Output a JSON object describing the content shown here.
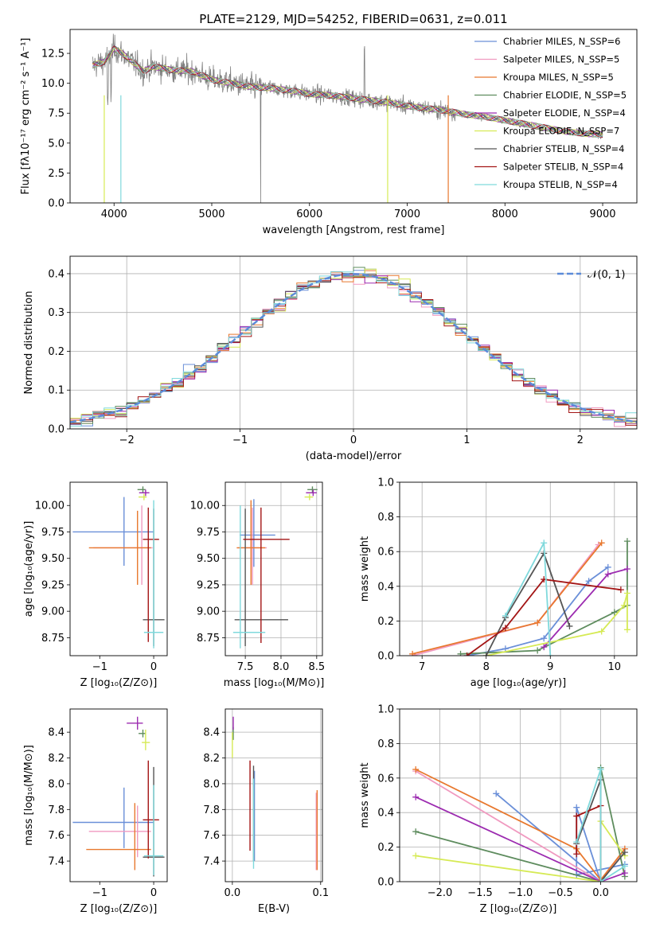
{
  "colors": {
    "spectrum": "#808080",
    "normal": "#5b8bd9",
    "models": [
      "#6a8fd8",
      "#f09ac0",
      "#e8782e",
      "#5e8c5e",
      "#9c2bb0",
      "#d6ea55",
      "#555555",
      "#a31515",
      "#7fd9dc"
    ]
  },
  "chart_data": [
    {
      "id": "spectrum",
      "type": "line",
      "title": "PLATE=2129, MJD=54252, FIBERID=0631, z=0.011",
      "xlabel": "wavelength [Angstrom, rest frame]",
      "ylabel": "Flux [fλ10⁻¹⁷ erg cm⁻² s⁻¹ A⁻¹]",
      "xlim": [
        3550,
        9350
      ],
      "ylim": [
        0,
        14.5
      ],
      "xticks": [
        4000,
        5000,
        6000,
        7000,
        8000,
        9000
      ],
      "yticks": [
        0.0,
        2.5,
        5.0,
        7.5,
        10.0,
        12.5
      ],
      "legend_position": "top-right",
      "legend": [
        "Chabrier MILES, N_SSP=6",
        "Salpeter MILES, N_SSP=5",
        "Kroupa MILES, N_SSP=5",
        "Chabrier ELODIE, N_SSP=5",
        "Salpeter ELODIE, N_SSP=4",
        "Kroupa ELODIE, N_SSP=7",
        "Chabrier STELIB, N_SSP=4",
        "Salpeter STELIB, N_SSP=4",
        "Kroupa STELIB, N_SSP=4"
      ],
      "continuum": [
        [
          3780,
          11.5
        ],
        [
          3900,
          11.8
        ],
        [
          4000,
          12.9
        ],
        [
          4100,
          12.4
        ],
        [
          4200,
          11.7
        ],
        [
          4300,
          11.0
        ],
        [
          4400,
          11.4
        ],
        [
          4600,
          11.1
        ],
        [
          4800,
          11.0
        ],
        [
          5000,
          10.3
        ],
        [
          5200,
          10.0
        ],
        [
          5400,
          9.7
        ],
        [
          5600,
          9.6
        ],
        [
          5800,
          9.4
        ],
        [
          6000,
          9.1
        ],
        [
          6200,
          9.0
        ],
        [
          6400,
          8.8
        ],
        [
          6600,
          8.6
        ],
        [
          6800,
          8.4
        ],
        [
          7000,
          8.1
        ],
        [
          7200,
          7.9
        ],
        [
          7400,
          7.7
        ],
        [
          7600,
          7.4
        ],
        [
          7800,
          7.2
        ],
        [
          8000,
          6.9
        ],
        [
          8200,
          6.6
        ],
        [
          8400,
          6.3
        ],
        [
          8600,
          6.0
        ],
        [
          8800,
          5.8
        ],
        [
          9000,
          5.7
        ]
      ]
    },
    {
      "id": "residuals",
      "type": "bar",
      "xlabel": "(data-model)/error",
      "ylabel": "Normed distribution",
      "xlim": [
        -2.5,
        2.5
      ],
      "ylim": [
        0,
        0.445
      ],
      "xticks": [
        -2,
        -1,
        0,
        1,
        2
      ],
      "yticks": [
        0.0,
        0.1,
        0.2,
        0.3,
        0.4
      ],
      "legend_position": "top-right",
      "legend": [
        "𝒩(0, 1)"
      ],
      "bin_width": 0.1,
      "bins_from": -2.5
    },
    {
      "id": "age-vs-Z",
      "type": "scatter",
      "xlabel": "Z [log₁₀(Z/Z⊙)]",
      "ylabel": "age  [log₁₀(age/yr)]",
      "xlim": [
        -1.55,
        0.25
      ],
      "ylim": [
        8.58,
        10.22
      ],
      "xticks": [
        -1,
        0
      ],
      "yticks": [
        8.75,
        9.0,
        9.25,
        9.5,
        9.75,
        10.0
      ],
      "points": [
        {
          "x": -0.55,
          "y": 9.75,
          "xe": [
            0.95,
            0.55
          ],
          "ye": [
            0.32,
            0.33
          ]
        },
        {
          "x": -0.22,
          "y": 9.6,
          "xe": [
            0.9,
            0.2
          ],
          "ye": [
            0.35,
            0.4
          ]
        },
        {
          "x": -0.3,
          "y": 9.6,
          "xe": [
            0.9,
            0.25
          ],
          "ye": [
            0.35,
            0.35
          ]
        },
        {
          "x": -0.2,
          "y": 10.15,
          "xe": [
            0.1,
            0.05
          ],
          "ye": [
            0.03,
            0.03
          ]
        },
        {
          "x": -0.15,
          "y": 10.12,
          "xe": [
            0.12,
            0.07
          ],
          "ye": [
            0.03,
            0.03
          ]
        },
        {
          "x": -0.18,
          "y": 10.08,
          "xe": [
            0.1,
            0.05
          ],
          "ye": [
            0.03,
            0.03
          ]
        },
        {
          "x": 0.0,
          "y": 8.92,
          "xe": [
            0.2,
            0.2
          ],
          "ye": [
            0.25,
            1.05
          ]
        },
        {
          "x": -0.1,
          "y": 9.68,
          "xe": [
            0.1,
            0.2
          ],
          "ye": [
            0.97,
            0.3
          ]
        },
        {
          "x": 0.0,
          "y": 8.8,
          "xe": [
            0.18,
            0.18
          ],
          "ye": [
            0.15,
            1.25
          ]
        }
      ]
    },
    {
      "id": "age-vs-mass",
      "type": "scatter",
      "xlabel": "mass [log₁₀(M/M⊙)]",
      "ylabel": "",
      "xlim": [
        7.22,
        8.58
      ],
      "ylim": [
        8.58,
        10.22
      ],
      "xticks": [
        7.5,
        8.0,
        8.5
      ],
      "yticks": [
        8.75,
        9.0,
        9.25,
        9.5,
        9.75,
        10.0
      ],
      "points": [
        {
          "x": 7.62,
          "y": 9.72,
          "xe": [
            0.2,
            0.3
          ],
          "ye": [
            0.3,
            0.34
          ]
        },
        {
          "x": 7.6,
          "y": 9.6,
          "xe": [
            0.2,
            0.2
          ],
          "ye": [
            0.35,
            0.38
          ]
        },
        {
          "x": 7.58,
          "y": 9.6,
          "xe": [
            0.2,
            0.2
          ],
          "ye": [
            0.35,
            0.45
          ]
        },
        {
          "x": 8.44,
          "y": 10.15,
          "xe": [
            0.07,
            0.07
          ],
          "ye": [
            0.03,
            0.03
          ]
        },
        {
          "x": 8.45,
          "y": 10.12,
          "xe": [
            0.1,
            0.05
          ],
          "ye": [
            0.03,
            0.03
          ]
        },
        {
          "x": 8.4,
          "y": 10.08,
          "xe": [
            0.07,
            0.05
          ],
          "ye": [
            0.03,
            0.03
          ]
        },
        {
          "x": 7.5,
          "y": 8.92,
          "xe": [
            0.15,
            0.6
          ],
          "ye": [
            0.25,
            1.05
          ]
        },
        {
          "x": 7.72,
          "y": 9.68,
          "xe": [
            0.25,
            0.4
          ],
          "ye": [
            0.98,
            0.3
          ]
        },
        {
          "x": 7.43,
          "y": 8.8,
          "xe": [
            0.1,
            0.35
          ],
          "ye": [
            0.15,
            1.2
          ]
        }
      ]
    },
    {
      "id": "weight-vs-age",
      "type": "line",
      "xlabel": "age  [log₁₀(age/yr)]",
      "ylabel": "mass weight",
      "xlim": [
        6.65,
        10.35
      ],
      "ylim": [
        0,
        1
      ],
      "xticks": [
        7,
        8,
        9,
        10
      ],
      "yticks": [
        0.0,
        0.2,
        0.4,
        0.6,
        0.8,
        1.0
      ],
      "series": [
        {
          "points": [
            [
              7.7,
              0.0
            ],
            [
              8.3,
              0.04
            ],
            [
              8.9,
              0.1
            ],
            [
              9.6,
              0.43
            ],
            [
              9.9,
              0.51
            ]
          ]
        },
        {
          "points": [
            [
              6.85,
              0.0
            ],
            [
              8.8,
              0.19
            ],
            [
              9.75,
              0.64
            ]
          ]
        },
        {
          "points": [
            [
              6.85,
              0.01
            ],
            [
              8.8,
              0.19
            ],
            [
              9.8,
              0.65
            ]
          ]
        },
        {
          "points": [
            [
              7.6,
              0.01
            ],
            [
              8.8,
              0.03
            ],
            [
              10.0,
              0.25
            ],
            [
              10.2,
              0.29
            ],
            [
              10.2,
              0.66
            ]
          ]
        },
        {
          "points": [
            [
              8.9,
              0.05
            ],
            [
              9.9,
              0.47
            ],
            [
              10.2,
              0.5
            ]
          ]
        },
        {
          "points": [
            [
              8.0,
              0.0
            ],
            [
              9.8,
              0.14
            ],
            [
              10.15,
              0.29
            ],
            [
              10.2,
              0.36
            ],
            [
              10.2,
              0.15
            ]
          ]
        },
        {
          "points": [
            [
              8.0,
              0.0
            ],
            [
              8.3,
              0.22
            ],
            [
              8.9,
              0.59
            ],
            [
              9.3,
              0.17
            ]
          ]
        },
        {
          "points": [
            [
              7.7,
              0.0
            ],
            [
              8.3,
              0.16
            ],
            [
              8.9,
              0.44
            ],
            [
              10.1,
              0.38
            ]
          ]
        },
        {
          "points": [
            [
              8.3,
              0.23
            ],
            [
              8.9,
              0.65
            ],
            [
              9.0,
              0.0
            ]
          ]
        }
      ]
    },
    {
      "id": "mass-vs-Z",
      "type": "scatter",
      "xlabel": "Z [log₁₀(Z/Z⊙)]",
      "ylabel": "mass [log₁₀(M/M⊙)]",
      "xlim": [
        -1.55,
        0.25
      ],
      "ylim": [
        7.24,
        8.58
      ],
      "xticks": [
        -1,
        0
      ],
      "yticks": [
        7.4,
        7.6,
        7.8,
        8.0,
        8.2,
        8.4
      ],
      "points": [
        {
          "x": -0.55,
          "y": 7.7,
          "xe": [
            0.95,
            0.55
          ],
          "ye": [
            0.2,
            0.27
          ]
        },
        {
          "x": -0.3,
          "y": 7.63,
          "xe": [
            0.9,
            0.25
          ],
          "ye": [
            0.2,
            0.2
          ]
        },
        {
          "x": -0.35,
          "y": 7.49,
          "xe": [
            0.9,
            0.3
          ],
          "ye": [
            0.16,
            0.36
          ]
        },
        {
          "x": -0.2,
          "y": 8.39,
          "xe": [
            0.08,
            0.05
          ],
          "ye": [
            0.03,
            0.03
          ]
        },
        {
          "x": -0.3,
          "y": 8.47,
          "xe": [
            0.2,
            0.1
          ],
          "ye": [
            0.05,
            0.05
          ]
        },
        {
          "x": -0.15,
          "y": 8.32,
          "xe": [
            0.07,
            0.08
          ],
          "ye": [
            0.06,
            0.1
          ]
        },
        {
          "x": 0.0,
          "y": 7.43,
          "xe": [
            0.2,
            0.2
          ],
          "ye": [
            0.15,
            0.7
          ]
        },
        {
          "x": -0.1,
          "y": 7.72,
          "xe": [
            0.1,
            0.2
          ],
          "ye": [
            0.3,
            0.46
          ]
        },
        {
          "x": 0.0,
          "y": 7.44,
          "xe": [
            0.18,
            0.18
          ],
          "ye": [
            0.15,
            0.55
          ]
        }
      ]
    },
    {
      "id": "mass-vs-ebv",
      "type": "scatter",
      "xlabel": "E(B-V)",
      "ylabel": "",
      "xlim": [
        -0.008,
        0.102
      ],
      "ylim": [
        7.24,
        8.58
      ],
      "xticks": [
        0.0,
        0.1
      ],
      "yticks": [
        7.4,
        7.6,
        7.8,
        8.0,
        8.2,
        8.4
      ],
      "points": [
        {
          "x": 0.025,
          "y": 7.7,
          "ye": [
            0.3,
            0.4
          ]
        },
        {
          "x": 0.095,
          "y": 7.63,
          "ye": [
            0.3,
            0.3
          ]
        },
        {
          "x": 0.096,
          "y": 7.55,
          "ye": [
            0.22,
            0.4
          ]
        },
        {
          "x": 0.001,
          "y": 8.39,
          "ye": [
            0.05,
            0.05
          ]
        },
        {
          "x": 0.001,
          "y": 8.47,
          "ye": [
            0.05,
            0.05
          ]
        },
        {
          "x": 0.0,
          "y": 8.3,
          "ye": [
            0.1,
            0.1
          ]
        },
        {
          "x": 0.024,
          "y": 7.7,
          "ye": [
            0.3,
            0.44
          ]
        },
        {
          "x": 0.02,
          "y": 7.83,
          "ye": [
            0.35,
            0.35
          ]
        },
        {
          "x": 0.024,
          "y": 7.44,
          "ye": [
            0.1,
            0.6
          ]
        }
      ]
    },
    {
      "id": "weight-vs-Z",
      "type": "line",
      "xlabel": "Z [log₁₀(Z/Z⊙)]",
      "ylabel": "mass weight",
      "xlim": [
        -2.5,
        0.45
      ],
      "ylim": [
        0,
        1
      ],
      "xticks": [
        -2.0,
        -1.5,
        -1.0,
        -0.5,
        0.0
      ],
      "yticks": [
        0.0,
        0.2,
        0.4,
        0.6,
        0.8,
        1.0
      ],
      "series": [
        {
          "points": [
            [
              -1.3,
              0.51
            ],
            [
              0.0,
              0.0
            ],
            [
              -0.3,
              0.43
            ],
            [
              -0.3,
              0.04
            ],
            [
              0.3,
              0.1
            ]
          ]
        },
        {
          "points": [
            [
              -2.3,
              0.64
            ],
            [
              0.0,
              0.0
            ],
            [
              0.3,
              0.19
            ]
          ]
        },
        {
          "points": [
            [
              -2.3,
              0.65
            ],
            [
              -0.3,
              0.19
            ],
            [
              0.0,
              0.01
            ],
            [
              0.3,
              0.19
            ]
          ]
        },
        {
          "points": [
            [
              -2.3,
              0.29
            ],
            [
              0.0,
              0.0
            ],
            [
              0.0,
              0.66
            ],
            [
              0.3,
              0.03
            ]
          ]
        },
        {
          "points": [
            [
              -2.3,
              0.49
            ],
            [
              0.0,
              0.0
            ],
            [
              0.3,
              0.05
            ]
          ]
        },
        {
          "points": [
            [
              -2.3,
              0.15
            ],
            [
              0.0,
              0.0
            ],
            [
              0.0,
              0.35
            ],
            [
              0.3,
              0.15
            ]
          ]
        },
        {
          "points": [
            [
              -0.3,
              0.22
            ],
            [
              0.0,
              0.59
            ],
            [
              0.0,
              0.0
            ],
            [
              0.3,
              0.17
            ]
          ]
        },
        {
          "points": [
            [
              -0.3,
              0.16
            ],
            [
              -0.3,
              0.38
            ],
            [
              0.0,
              0.44
            ],
            [
              0.0,
              0.0
            ]
          ]
        },
        {
          "points": [
            [
              -0.3,
              0.23
            ],
            [
              0.0,
              0.65
            ],
            [
              0.0,
              0.0
            ],
            [
              0.3,
              0.09
            ]
          ]
        }
      ]
    }
  ]
}
